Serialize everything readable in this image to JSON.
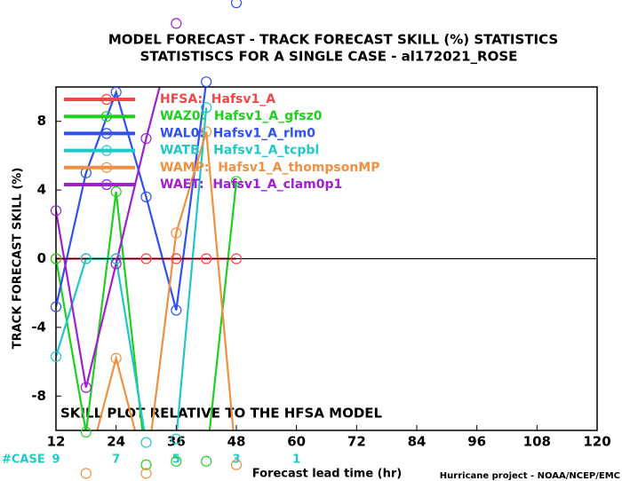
{
  "chart_data": {
    "type": "line",
    "title": "MODEL FORECAST - TRACK FORECAST SKILL (%) STATISTICS",
    "subtitle": "STATISTISCS FOR A SINGLE CASE - al172021_ROSE",
    "y_label": "TRACK FORECAST SKILL (%)",
    "x_label": "Forecast lead time (hr)",
    "annotation": "SKILL PLOT RELATIVE TO THE HFSA MODEL",
    "footer": "Hurricane project - NOAA/NCEP/EMC",
    "x": [
      12,
      18,
      24,
      30,
      36,
      42,
      48
    ],
    "series": [
      {
        "name": "HFSA:  Hafsv1_A",
        "color": "#f04848",
        "values": [
          0,
          0,
          0,
          0,
          0,
          0,
          0
        ]
      },
      {
        "name": "WAZ0:  Hafsv1_A_gfsz0",
        "color": "#20d020",
        "values": [
          0,
          -10.1,
          3.9,
          -12,
          -11.8,
          -11.8,
          4.5
        ]
      },
      {
        "name": "WAL0:  Hafsv1_A_rlm0",
        "color": "#3050f0",
        "values": [
          -2.8,
          5.0,
          9.7,
          3.6,
          -3.0,
          10.3,
          14.9
        ]
      },
      {
        "name": "WATB:  Hafsv1_A_tcpbl",
        "color": "#20c8c8",
        "values": [
          -5.7,
          0,
          0,
          -10.7,
          -10.5,
          8.8,
          null
        ]
      },
      {
        "name": "WAMP:  Hafsv1_A_thompsonMP",
        "color": "#f09040",
        "values": [
          null,
          -12.5,
          -5.8,
          -12.5,
          1.5,
          7.4,
          -12
        ]
      },
      {
        "name": "WAET:  Hafsv1_A_clam0p1",
        "color": "#a020d0",
        "values": [
          2.8,
          -7.5,
          -0.3,
          7.0,
          13.7,
          null,
          null
        ]
      }
    ],
    "xlim": [
      12,
      120
    ],
    "xticks": [
      12,
      24,
      36,
      48,
      60,
      72,
      84,
      96,
      108,
      120
    ],
    "ylim": [
      -10,
      10
    ],
    "yticks": [
      -8,
      -4,
      0,
      4,
      8
    ],
    "cases": {
      "label": "#CASE",
      "x": [
        12,
        24,
        36,
        48,
        60
      ],
      "values": [
        9,
        7,
        5,
        3,
        1
      ]
    }
  }
}
